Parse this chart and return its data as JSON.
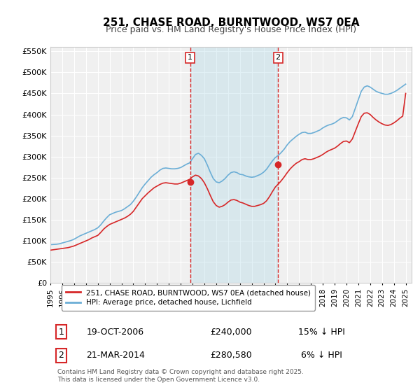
{
  "title": "251, CHASE ROAD, BURNTWOOD, WS7 0EA",
  "subtitle": "Price paid vs. HM Land Registry's House Price Index (HPI)",
  "title_fontsize": 13,
  "subtitle_fontsize": 10,
  "background_color": "#ffffff",
  "plot_bg_color": "#f0f0f0",
  "grid_color": "#ffffff",
  "hpi_color": "#6baed6",
  "price_color": "#d62728",
  "ylim": [
    0,
    560000
  ],
  "yticks": [
    0,
    50000,
    100000,
    150000,
    200000,
    250000,
    300000,
    350000,
    400000,
    450000,
    500000,
    550000
  ],
  "ytick_labels": [
    "£0",
    "£50K",
    "£100K",
    "£150K",
    "£200K",
    "£250K",
    "£300K",
    "£350K",
    "£400K",
    "£450K",
    "£500K",
    "£550K"
  ],
  "xmin": 1995.0,
  "xmax": 2025.5,
  "marker1_x": 2006.8,
  "marker1_y": 240000,
  "marker2_x": 2014.22,
  "marker2_y": 280580,
  "shade_x1": 2006.8,
  "shade_x2": 2014.22,
  "legend_label_price": "251, CHASE ROAD, BURNTWOOD, WS7 0EA (detached house)",
  "legend_label_hpi": "HPI: Average price, detached house, Lichfield",
  "table_row1": [
    "1",
    "19-OCT-2006",
    "£240,000",
    "15% ↓ HPI"
  ],
  "table_row2": [
    "2",
    "21-MAR-2014",
    "£280,580",
    "6% ↓ HPI"
  ],
  "footer": "Contains HM Land Registry data © Crown copyright and database right 2025.\nThis data is licensed under the Open Government Licence v3.0.",
  "hpi_data_x": [
    1995.0,
    1995.25,
    1995.5,
    1995.75,
    1996.0,
    1996.25,
    1996.5,
    1996.75,
    1997.0,
    1997.25,
    1997.5,
    1997.75,
    1998.0,
    1998.25,
    1998.5,
    1998.75,
    1999.0,
    1999.25,
    1999.5,
    1999.75,
    2000.0,
    2000.25,
    2000.5,
    2000.75,
    2001.0,
    2001.25,
    2001.5,
    2001.75,
    2002.0,
    2002.25,
    2002.5,
    2002.75,
    2003.0,
    2003.25,
    2003.5,
    2003.75,
    2004.0,
    2004.25,
    2004.5,
    2004.75,
    2005.0,
    2005.25,
    2005.5,
    2005.75,
    2006.0,
    2006.25,
    2006.5,
    2006.75,
    2007.0,
    2007.25,
    2007.5,
    2007.75,
    2008.0,
    2008.25,
    2008.5,
    2008.75,
    2009.0,
    2009.25,
    2009.5,
    2009.75,
    2010.0,
    2010.25,
    2010.5,
    2010.75,
    2011.0,
    2011.25,
    2011.5,
    2011.75,
    2012.0,
    2012.25,
    2012.5,
    2012.75,
    2013.0,
    2013.25,
    2013.5,
    2013.75,
    2014.0,
    2014.25,
    2014.5,
    2014.75,
    2015.0,
    2015.25,
    2015.5,
    2015.75,
    2016.0,
    2016.25,
    2016.5,
    2016.75,
    2017.0,
    2017.25,
    2017.5,
    2017.75,
    2018.0,
    2018.25,
    2018.5,
    2018.75,
    2019.0,
    2019.25,
    2019.5,
    2019.75,
    2020.0,
    2020.25,
    2020.5,
    2020.75,
    2021.0,
    2021.25,
    2021.5,
    2021.75,
    2022.0,
    2022.25,
    2022.5,
    2022.75,
    2023.0,
    2023.25,
    2023.5,
    2023.75,
    2024.0,
    2024.25,
    2024.5,
    2024.75,
    2025.0
  ],
  "hpi_data_y": [
    91000,
    91500,
    92000,
    93000,
    95000,
    97000,
    99000,
    101000,
    104000,
    108000,
    112000,
    115000,
    118000,
    121000,
    124000,
    127000,
    131000,
    138000,
    147000,
    155000,
    162000,
    165000,
    168000,
    170000,
    172000,
    176000,
    181000,
    186000,
    194000,
    204000,
    215000,
    226000,
    235000,
    243000,
    251000,
    257000,
    262000,
    268000,
    272000,
    273000,
    272000,
    271000,
    271000,
    272000,
    274000,
    278000,
    282000,
    285000,
    295000,
    305000,
    308000,
    303000,
    295000,
    280000,
    263000,
    248000,
    240000,
    238000,
    242000,
    248000,
    256000,
    262000,
    264000,
    262000,
    258000,
    257000,
    254000,
    252000,
    251000,
    252000,
    255000,
    258000,
    263000,
    270000,
    280000,
    290000,
    298000,
    303000,
    310000,
    318000,
    328000,
    336000,
    342000,
    348000,
    353000,
    357000,
    358000,
    355000,
    355000,
    357000,
    360000,
    363000,
    368000,
    372000,
    375000,
    377000,
    380000,
    385000,
    390000,
    393000,
    392000,
    387000,
    395000,
    415000,
    435000,
    455000,
    465000,
    468000,
    465000,
    460000,
    455000,
    452000,
    450000,
    448000,
    448000,
    450000,
    453000,
    457000,
    462000,
    467000,
    472000
  ],
  "price_data_x": [
    1995.0,
    1995.25,
    1995.5,
    1995.75,
    1996.0,
    1996.25,
    1996.5,
    1996.75,
    1997.0,
    1997.25,
    1997.5,
    1997.75,
    1998.0,
    1998.25,
    1998.5,
    1998.75,
    1999.0,
    1999.25,
    1999.5,
    1999.75,
    2000.0,
    2000.25,
    2000.5,
    2000.75,
    2001.0,
    2001.25,
    2001.5,
    2001.75,
    2002.0,
    2002.25,
    2002.5,
    2002.75,
    2003.0,
    2003.25,
    2003.5,
    2003.75,
    2004.0,
    2004.25,
    2004.5,
    2004.75,
    2005.0,
    2005.25,
    2005.5,
    2005.75,
    2006.0,
    2006.25,
    2006.5,
    2006.75,
    2007.0,
    2007.25,
    2007.5,
    2007.75,
    2008.0,
    2008.25,
    2008.5,
    2008.75,
    2009.0,
    2009.25,
    2009.5,
    2009.75,
    2010.0,
    2010.25,
    2010.5,
    2010.75,
    2011.0,
    2011.25,
    2011.5,
    2011.75,
    2012.0,
    2012.25,
    2012.5,
    2012.75,
    2013.0,
    2013.25,
    2013.5,
    2013.75,
    2014.0,
    2014.25,
    2014.5,
    2014.75,
    2015.0,
    2015.25,
    2015.5,
    2015.75,
    2016.0,
    2016.25,
    2016.5,
    2016.75,
    2017.0,
    2017.25,
    2017.5,
    2017.75,
    2018.0,
    2018.25,
    2018.5,
    2018.75,
    2019.0,
    2019.25,
    2019.5,
    2019.75,
    2020.0,
    2020.25,
    2020.5,
    2020.75,
    2021.0,
    2021.25,
    2021.5,
    2021.75,
    2022.0,
    2022.25,
    2022.5,
    2022.75,
    2023.0,
    2023.25,
    2023.5,
    2023.75,
    2024.0,
    2024.25,
    2024.5,
    2024.75,
    2025.0
  ],
  "price_data_y": [
    78000,
    79000,
    80000,
    81000,
    82000,
    83000,
    84000,
    86000,
    88000,
    91000,
    94000,
    97000,
    100000,
    103000,
    107000,
    110000,
    113000,
    120000,
    128000,
    134000,
    139000,
    142000,
    145000,
    148000,
    151000,
    154000,
    158000,
    163000,
    170000,
    180000,
    190000,
    200000,
    207000,
    214000,
    220000,
    226000,
    230000,
    234000,
    237000,
    238000,
    237000,
    236000,
    235000,
    235000,
    237000,
    240000,
    243000,
    246000,
    252000,
    256000,
    254000,
    248000,
    238000,
    224000,
    208000,
    193000,
    184000,
    180000,
    182000,
    186000,
    192000,
    197000,
    198000,
    196000,
    192000,
    190000,
    187000,
    184000,
    182000,
    182000,
    184000,
    186000,
    189000,
    195000,
    205000,
    217000,
    228000,
    235000,
    243000,
    252000,
    262000,
    271000,
    278000,
    284000,
    288000,
    293000,
    295000,
    293000,
    293000,
    295000,
    298000,
    301000,
    305000,
    310000,
    314000,
    317000,
    320000,
    325000,
    331000,
    336000,
    337000,
    333000,
    342000,
    360000,
    378000,
    395000,
    403000,
    404000,
    400000,
    393000,
    387000,
    382000,
    378000,
    375000,
    374000,
    376000,
    380000,
    385000,
    391000,
    396000,
    450000
  ]
}
